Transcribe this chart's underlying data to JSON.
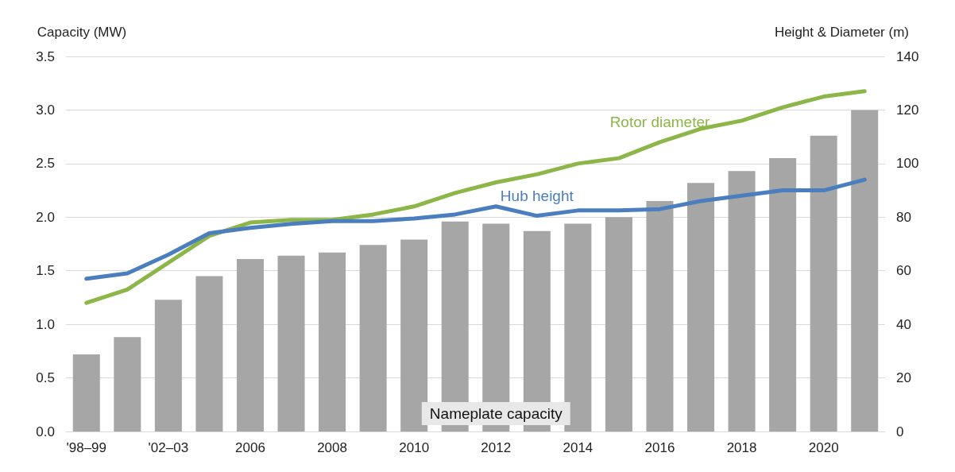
{
  "chart_data": {
    "type": "bar",
    "ylabel": "Capacity (MW)",
    "y2label": "Height & Diameter (m)",
    "categories": [
      "'98–99",
      null,
      "'02–03",
      null,
      "2006",
      null,
      "2008",
      null,
      "2010",
      null,
      "2012",
      null,
      "2014",
      null,
      "2016",
      null,
      "2018",
      null,
      "2020",
      null
    ],
    "series": [
      {
        "name": "Nameplate capacity",
        "color": "#a6a6a6",
        "values": [
          0.72,
          0.88,
          1.23,
          1.45,
          1.61,
          1.64,
          1.67,
          1.74,
          1.79,
          1.96,
          1.94,
          1.87,
          1.94,
          2.0,
          2.15,
          2.32,
          2.43,
          2.55,
          2.76,
          3.0
        ]
      },
      {
        "name": "Rotor diameter",
        "type": "line",
        "axis": "y2",
        "color": "#8db648",
        "values": [
          48,
          53,
          63,
          73,
          78,
          79,
          79,
          81,
          84,
          89,
          93,
          96,
          100,
          102,
          108,
          113,
          116,
          121,
          125,
          127
        ]
      },
      {
        "name": "Hub height",
        "type": "line",
        "axis": "y2",
        "color": "#4a7ebf",
        "values": [
          57,
          59,
          66,
          74,
          76,
          77.5,
          78.5,
          78.5,
          79.5,
          81,
          84,
          80.5,
          82.5,
          82.5,
          83,
          86,
          88,
          90,
          90,
          94
        ]
      }
    ],
    "ylim": [
      0,
      3.5
    ],
    "yticks": [
      {
        "value": 0,
        "label": "0.0"
      },
      0.5,
      {
        "value": 1,
        "label": "1.0"
      },
      1.5,
      {
        "value": 2,
        "label": "2.0"
      },
      2.5,
      {
        "value": 3,
        "label": "3.0"
      },
      3.5
    ],
    "y2lim": [
      0,
      140
    ],
    "y2ticks": [
      0,
      20,
      40,
      60,
      80,
      100,
      120,
      140
    ],
    "grid": "y",
    "legend": false,
    "marker": "none"
  }
}
